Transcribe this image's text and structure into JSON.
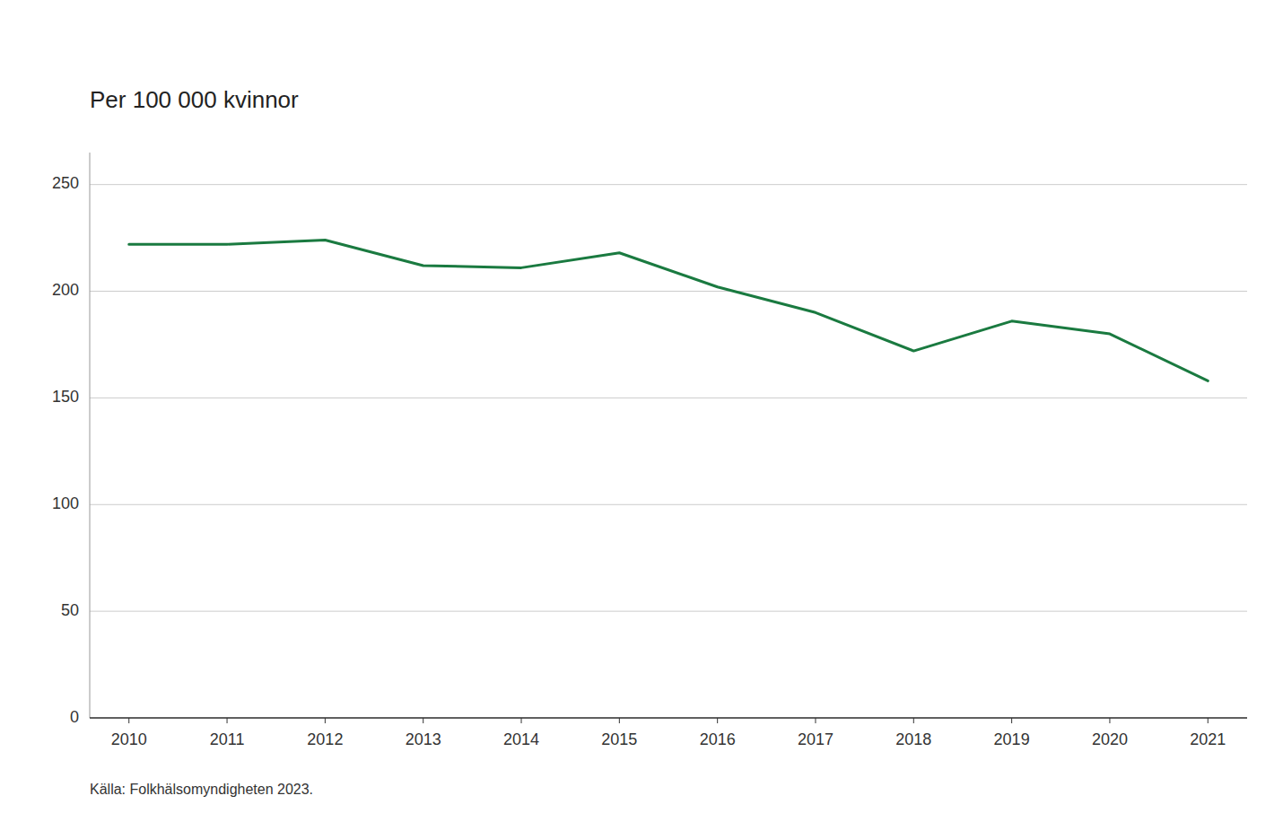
{
  "chart_data": {
    "type": "line",
    "title": "Per 100 000 kvinnor",
    "caption": "Källa: Folkhälsomyndigheten 2023.",
    "x": [
      2010,
      2011,
      2012,
      2013,
      2014,
      2015,
      2016,
      2017,
      2018,
      2019,
      2020,
      2021
    ],
    "values": [
      222,
      222,
      224,
      212,
      211,
      218,
      202,
      190,
      172,
      186,
      180,
      158
    ],
    "color": "#1a7a40",
    "xlim": [
      2009.6,
      2021.4
    ],
    "xticks": [
      2010,
      2011,
      2012,
      2013,
      2014,
      2015,
      2016,
      2017,
      2018,
      2019,
      2020,
      2021
    ],
    "ylim": [
      0,
      265
    ],
    "yticks": [
      0,
      50,
      100,
      150,
      200,
      250
    ],
    "grid": true
  }
}
